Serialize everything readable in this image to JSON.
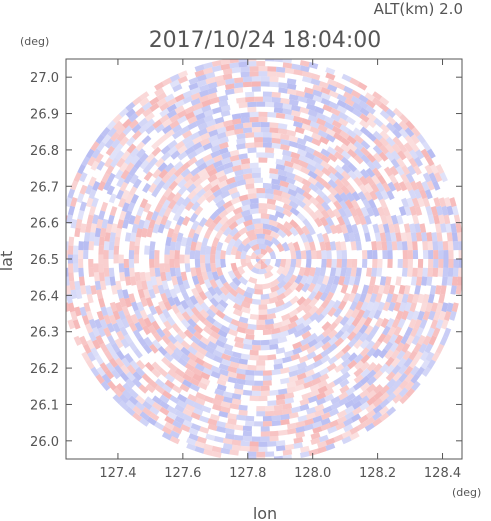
{
  "chart_data": {
    "type": "heatmap",
    "title": "2017/10/24 18:04:00",
    "subtitle": "ALT(km) 2.0",
    "xlabel": "lon",
    "ylabel": "lat",
    "x_unit": "(deg)",
    "y_unit": "(deg)",
    "xlim": [
      127.24,
      128.46
    ],
    "ylim": [
      25.95,
      27.05
    ],
    "x_ticks": [
      127.4,
      127.6,
      127.8,
      128.0,
      128.2,
      128.4
    ],
    "x_tick_labels": [
      "127.4",
      "127.6",
      "127.8",
      "128.0",
      "128.2",
      "128.4"
    ],
    "y_ticks": [
      26.0,
      26.1,
      26.2,
      26.3,
      26.4,
      26.5,
      26.6,
      26.7,
      26.8,
      26.9,
      27.0
    ],
    "y_tick_labels": [
      "26.0",
      "26.1",
      "26.2",
      "26.3",
      "26.4",
      "26.5",
      "26.6",
      "26.7",
      "26.8",
      "26.9",
      "27.0"
    ],
    "center": {
      "lon": 127.84,
      "lat": 26.5
    },
    "colors": {
      "positive": "#f4a8a8",
      "negative": "#aab0f0",
      "neutral": "#ffffff",
      "frame": "#555555"
    },
    "grid": false,
    "legend": "none"
  }
}
